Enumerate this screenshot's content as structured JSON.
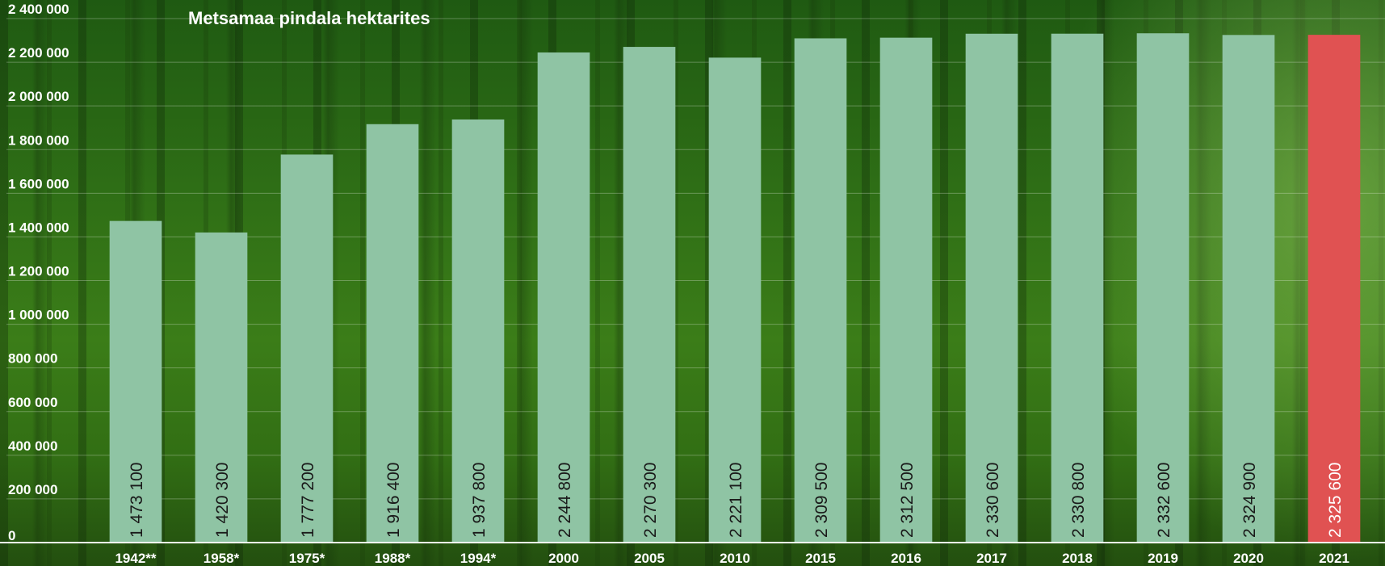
{
  "chart_data": {
    "type": "bar",
    "title": "Metsamaa pindala hektarites",
    "xlabel": "",
    "ylabel": "",
    "categories": [
      "1942**",
      "1958*",
      "1975*",
      "1988*",
      "1994*",
      "2000",
      "2005",
      "2010",
      "2015",
      "2016",
      "2017",
      "2018",
      "2019",
      "2020",
      "2021"
    ],
    "values": [
      1473100,
      1420300,
      1777200,
      1916400,
      1937800,
      2244800,
      2270300,
      2221100,
      2309500,
      2312500,
      2330600,
      2330800,
      2332600,
      2324900,
      2325600
    ],
    "value_labels": [
      "1 473 100",
      "1 420 300",
      "1 777 200",
      "1 916 400",
      "1 937 800",
      "2 244 800",
      "2 270 300",
      "2 221 100",
      "2 309 500",
      "2 312 500",
      "2 330 600",
      "2 330 800",
      "2 332 600",
      "2 324 900",
      "2 325 600"
    ],
    "ylim": [
      0,
      2400000
    ],
    "yticks": [
      0,
      200000,
      400000,
      600000,
      800000,
      1000000,
      1200000,
      1400000,
      1600000,
      1800000,
      2000000,
      2200000,
      2400000
    ],
    "ytick_labels": [
      "0",
      "200 000",
      "400 000",
      "600 000",
      "800 000",
      "1 000 000",
      "1 200 000",
      "1 400 000",
      "1 600 000",
      "1 800 000",
      "2 000 000",
      "2 200 000",
      "2 400 000"
    ],
    "grid": true,
    "legend": "none",
    "highlight_index": 14,
    "colors": {
      "bar": "#8fc4a4",
      "highlight": "#e05252",
      "label_on_bar": "#1a1a1a",
      "label_on_highlight": "#ffffff",
      "text": "#ffffff",
      "grid": "#ffffff"
    }
  }
}
